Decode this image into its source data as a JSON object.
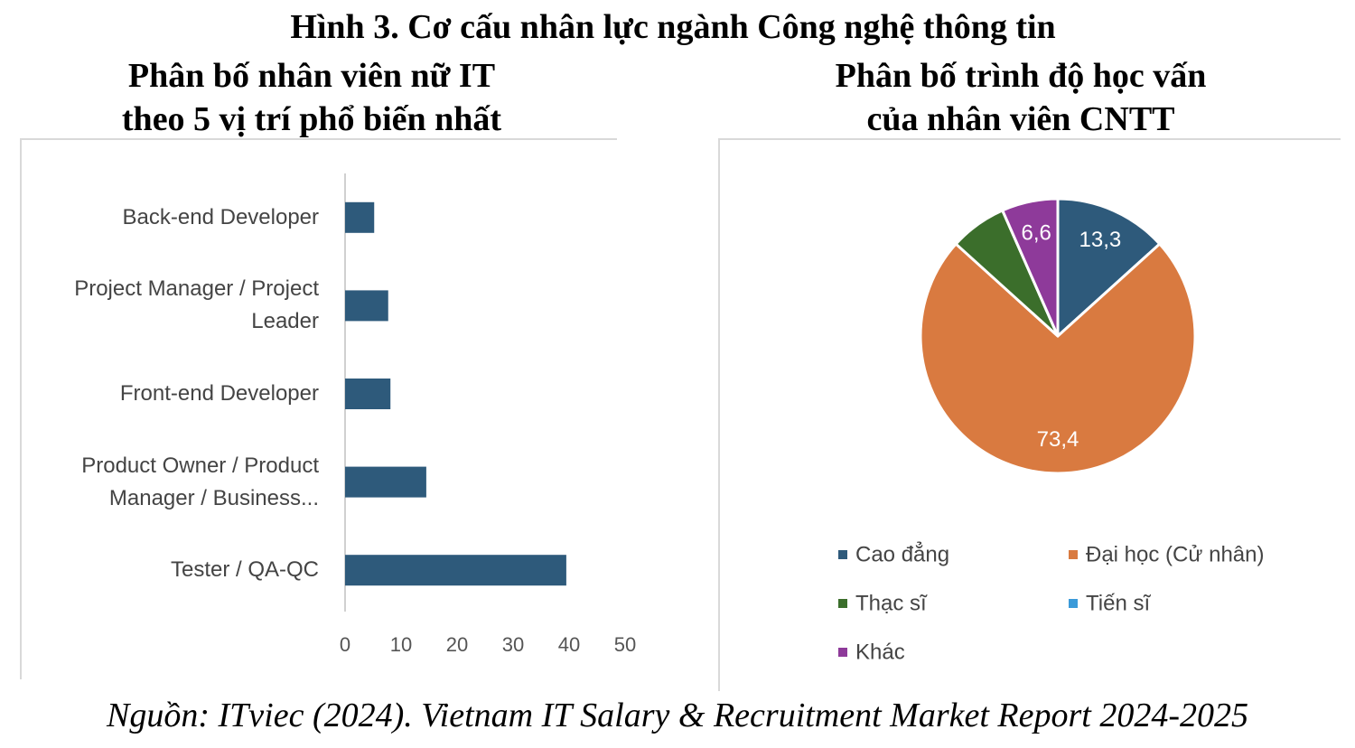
{
  "header": {
    "title": "Hình 3. Cơ cấu nhân lực ngành Công nghệ thông tin"
  },
  "chart_data": [
    {
      "type": "bar",
      "orientation": "horizontal",
      "title": [
        "Phân bố nhân viên nữ IT",
        "theo 5 vị trí phổ biến nhất"
      ],
      "categories": [
        "Back-end Developer",
        "Project Manager / Project Leader",
        "Front-end Developer",
        "Product Owner / Product Manager / Business...",
        "Tester / QA-QC"
      ],
      "values": [
        5.2,
        7.7,
        8.1,
        14.5,
        39.5
      ],
      "color": "#2e5a7b",
      "xlim": [
        0,
        50
      ],
      "xticks": [
        0,
        10,
        20,
        30,
        40,
        50
      ],
      "grid": false
    },
    {
      "type": "pie",
      "title": [
        "Phân bố trình độ học vấn",
        "của nhân viên CNTT"
      ],
      "categories": [
        "Cao đẳng",
        "Đại học (Cử nhân)",
        "Thạc sĩ",
        "Tiến sĩ",
        "Khác"
      ],
      "values": [
        13.3,
        73.4,
        6.7,
        0,
        6.6
      ],
      "value_labels": [
        "13,3",
        "73,4",
        null,
        null,
        "6,6"
      ],
      "colors": [
        "#2e5a7b",
        "#d97a40",
        "#3b6e2b",
        "#3a9ad9",
        "#8e3a9a"
      ]
    }
  ],
  "source": "Nguồn: ITviec (2024). Vietnam IT Salary & Recruitment Market Report 2024-2025"
}
